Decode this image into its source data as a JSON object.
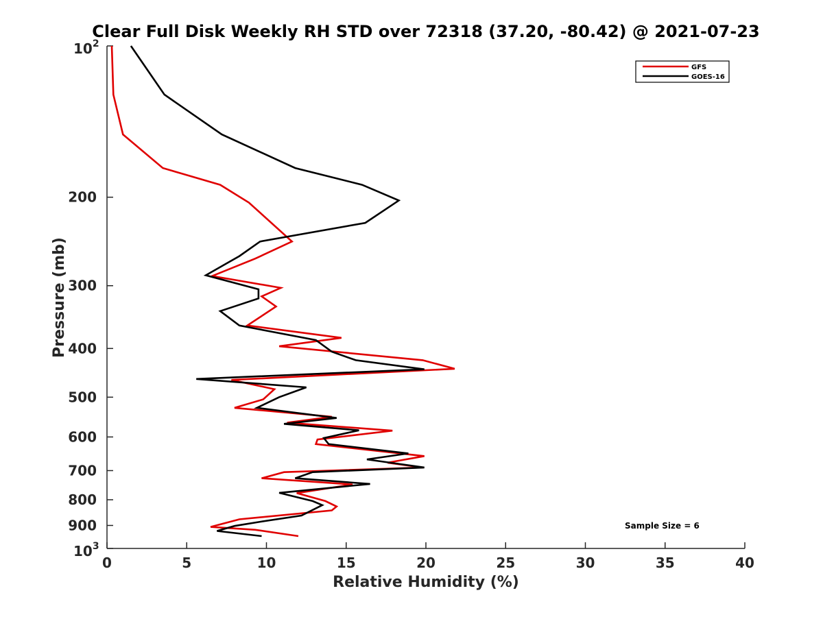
{
  "chart_data": {
    "type": "line",
    "title": "Clear Full Disk Weekly RH STD over 72318 (37.20, -80.42) @ 2021-07-23",
    "xlabel": "Relative Humidity (%)",
    "ylabel": "Pressure (mb)",
    "xlim": [
      0,
      40
    ],
    "ylim": [
      100,
      1000
    ],
    "y_scale": "log",
    "y_reversed": true,
    "x_ticks": [
      "0",
      "5",
      "10",
      "15",
      "20",
      "25",
      "30",
      "35",
      "40"
    ],
    "y_ticks": [
      {
        "value": 100,
        "label": "10",
        "sup": "2"
      },
      {
        "value": 200,
        "label": "200"
      },
      {
        "value": 300,
        "label": "300"
      },
      {
        "value": 400,
        "label": "400"
      },
      {
        "value": 500,
        "label": "500"
      },
      {
        "value": 600,
        "label": "600"
      },
      {
        "value": 700,
        "label": "700"
      },
      {
        "value": 800,
        "label": "800"
      },
      {
        "value": 900,
        "label": "900"
      },
      {
        "value": 1000,
        "label": "10",
        "sup": "3"
      }
    ],
    "grid": false,
    "legend_position": "top-right",
    "annotation": "Sample Size = 6",
    "series": [
      {
        "name": "GFS",
        "color": "#e00000",
        "points": [
          [
            0.3,
            100
          ],
          [
            0.4,
            125
          ],
          [
            1.0,
            150
          ],
          [
            3.5,
            175
          ],
          [
            7.1,
            189
          ],
          [
            8.9,
            205
          ],
          [
            11.6,
            245
          ],
          [
            9.3,
            265
          ],
          [
            6.6,
            287
          ],
          [
            10.9,
            303
          ],
          [
            9.7,
            315
          ],
          [
            10.6,
            330
          ],
          [
            8.8,
            360
          ],
          [
            14.7,
            381
          ],
          [
            10.8,
            396
          ],
          [
            19.8,
            422
          ],
          [
            21.8,
            439
          ],
          [
            7.8,
            462
          ],
          [
            10.5,
            482
          ],
          [
            9.8,
            505
          ],
          [
            8.0,
            525
          ],
          [
            14.1,
            547
          ],
          [
            11.3,
            562
          ],
          [
            17.9,
            583
          ],
          [
            13.2,
            607
          ],
          [
            13.1,
            620
          ],
          [
            19.9,
            655
          ],
          [
            17.6,
            675
          ],
          [
            19.8,
            690
          ],
          [
            11.1,
            705
          ],
          [
            9.7,
            725
          ],
          [
            15.4,
            746
          ],
          [
            11.9,
            776
          ],
          [
            13.7,
            805
          ],
          [
            14.4,
            825
          ],
          [
            14.1,
            840
          ],
          [
            8.3,
            875
          ],
          [
            6.5,
            906
          ],
          [
            9.3,
            918
          ],
          [
            12.0,
            945
          ]
        ]
      },
      {
        "name": "GOES-16",
        "color": "#000000",
        "points": [
          [
            1.5,
            100
          ],
          [
            3.6,
            125
          ],
          [
            7.2,
            150
          ],
          [
            11.8,
            175
          ],
          [
            16.0,
            189
          ],
          [
            18.3,
            203
          ],
          [
            16.2,
            225
          ],
          [
            9.6,
            245
          ],
          [
            8.3,
            262
          ],
          [
            6.2,
            286
          ],
          [
            9.5,
            305
          ],
          [
            9.5,
            318
          ],
          [
            7.1,
            337
          ],
          [
            8.3,
            360
          ],
          [
            13.1,
            385
          ],
          [
            14.1,
            406
          ],
          [
            15.6,
            422
          ],
          [
            19.9,
            440
          ],
          [
            5.6,
            460
          ],
          [
            12.5,
            478
          ],
          [
            10.8,
            500
          ],
          [
            9.4,
            525
          ],
          [
            14.4,
            550
          ],
          [
            11.1,
            565
          ],
          [
            15.8,
            582
          ],
          [
            13.6,
            603
          ],
          [
            13.9,
            620
          ],
          [
            18.9,
            647
          ],
          [
            16.3,
            665
          ],
          [
            19.9,
            690
          ],
          [
            12.9,
            705
          ],
          [
            11.8,
            725
          ],
          [
            16.5,
            744
          ],
          [
            10.8,
            775
          ],
          [
            12.9,
            805
          ],
          [
            13.5,
            820
          ],
          [
            12.2,
            860
          ],
          [
            9.6,
            885
          ],
          [
            8.0,
            902
          ],
          [
            6.9,
            923
          ],
          [
            9.7,
            945
          ]
        ]
      }
    ]
  }
}
